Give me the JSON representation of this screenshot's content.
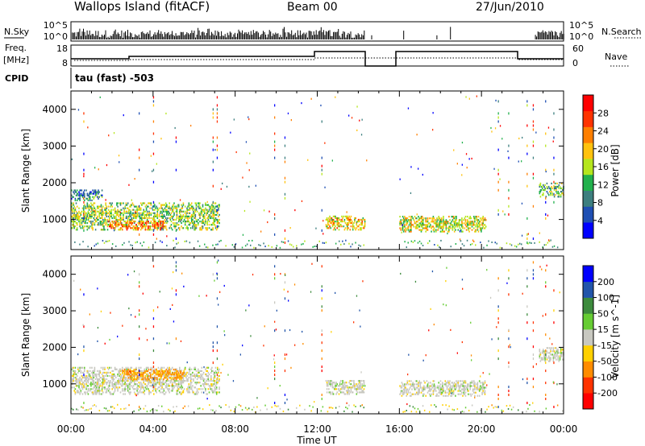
{
  "header": {
    "site": "Wallops Island (fitACF)",
    "beam": "Beam 00",
    "date": "27/Jun/2010"
  },
  "noise_panel": {
    "left_label": "N.Sky",
    "right_label": "N.Search",
    "ticks_left": [
      "10^5",
      "10^0"
    ],
    "ticks_right": [
      "10^5",
      "10^0"
    ]
  },
  "freq_panel": {
    "left_label_line1": "Freq.",
    "left_label_line2": "[MHz]",
    "left_ticks": [
      "18",
      "8"
    ],
    "right_label": "Nave",
    "right_ticks": [
      "60",
      "0"
    ]
  },
  "cpid_panel": {
    "label": "CPID",
    "text": "tau (fast) -503"
  },
  "colors": {
    "power_scale": [
      "#0000ff",
      "#1f4fb3",
      "#3d7f7f",
      "#22b14c",
      "#b5e61d",
      "#ffc20e",
      "#ff7f00",
      "#ff3300",
      "#ff0000"
    ],
    "velocity_scale": [
      "#0000ff",
      "#2255aa",
      "#3d8b3d",
      "#66cc33",
      "#c8c8c0",
      "#ffd000",
      "#ff8c00",
      "#ff3300",
      "#ff0000"
    ]
  },
  "chart_data": [
    {
      "type": "heatmap",
      "name": "power",
      "ylabel": "Slant Range [km]",
      "ylim": [
        180,
        4500
      ],
      "yticks": [
        "4000",
        "3000",
        "2000",
        "1000"
      ],
      "xlim_hours": [
        0,
        24
      ],
      "colorbar_label": "Power [dB]",
      "colorbar_range": [
        0,
        30
      ],
      "colorbar_ticks": [
        "28",
        "24",
        "20",
        "16",
        "12",
        "8",
        "4"
      ],
      "echo_regions": [
        {
          "t0": 0.0,
          "t1": 7.2,
          "r0": 700,
          "r1": 1450,
          "value": 14
        },
        {
          "t0": 0.0,
          "t1": 1.5,
          "r0": 1500,
          "r1": 1800,
          "value": 8
        },
        {
          "t0": 1.8,
          "t1": 4.5,
          "r0": 700,
          "r1": 950,
          "value": 22
        },
        {
          "t0": 12.4,
          "t1": 14.3,
          "r0": 700,
          "r1": 1100,
          "value": 18
        },
        {
          "t0": 16.0,
          "t1": 20.2,
          "r0": 650,
          "r1": 1100,
          "value": 16
        },
        {
          "t0": 22.8,
          "t1": 24.0,
          "r0": 1600,
          "r1": 2000,
          "value": 12
        }
      ]
    },
    {
      "type": "heatmap",
      "name": "velocity",
      "ylabel": "Slant Range [km]",
      "xlabel": "Time UT",
      "ylim": [
        180,
        4500
      ],
      "yticks": [
        "4000",
        "3000",
        "2000",
        "1000"
      ],
      "xticks": [
        "00:00",
        "04:00",
        "08:00",
        "12:00",
        "16:00",
        "20:00",
        "00:00"
      ],
      "colorbar_label": "Velocity [m s^-1]",
      "colorbar_range": [
        -250,
        250
      ],
      "colorbar_ticks": [
        "200",
        "100",
        "50",
        "15",
        "-15",
        "-50",
        "-100",
        "-200"
      ],
      "echo_regions": [
        {
          "t0": 0.0,
          "t1": 7.2,
          "r0": 700,
          "r1": 1450,
          "value": 0
        },
        {
          "t0": 2.5,
          "t1": 5.5,
          "r0": 1100,
          "r1": 1400,
          "value": -60
        },
        {
          "t0": 12.4,
          "t1": 14.3,
          "r0": 700,
          "r1": 1100,
          "value": 0
        },
        {
          "t0": 16.0,
          "t1": 20.2,
          "r0": 650,
          "r1": 1100,
          "value": 0
        },
        {
          "t0": 22.8,
          "t1": 24.0,
          "r0": 1600,
          "r1": 2000,
          "value": 0
        }
      ]
    }
  ]
}
